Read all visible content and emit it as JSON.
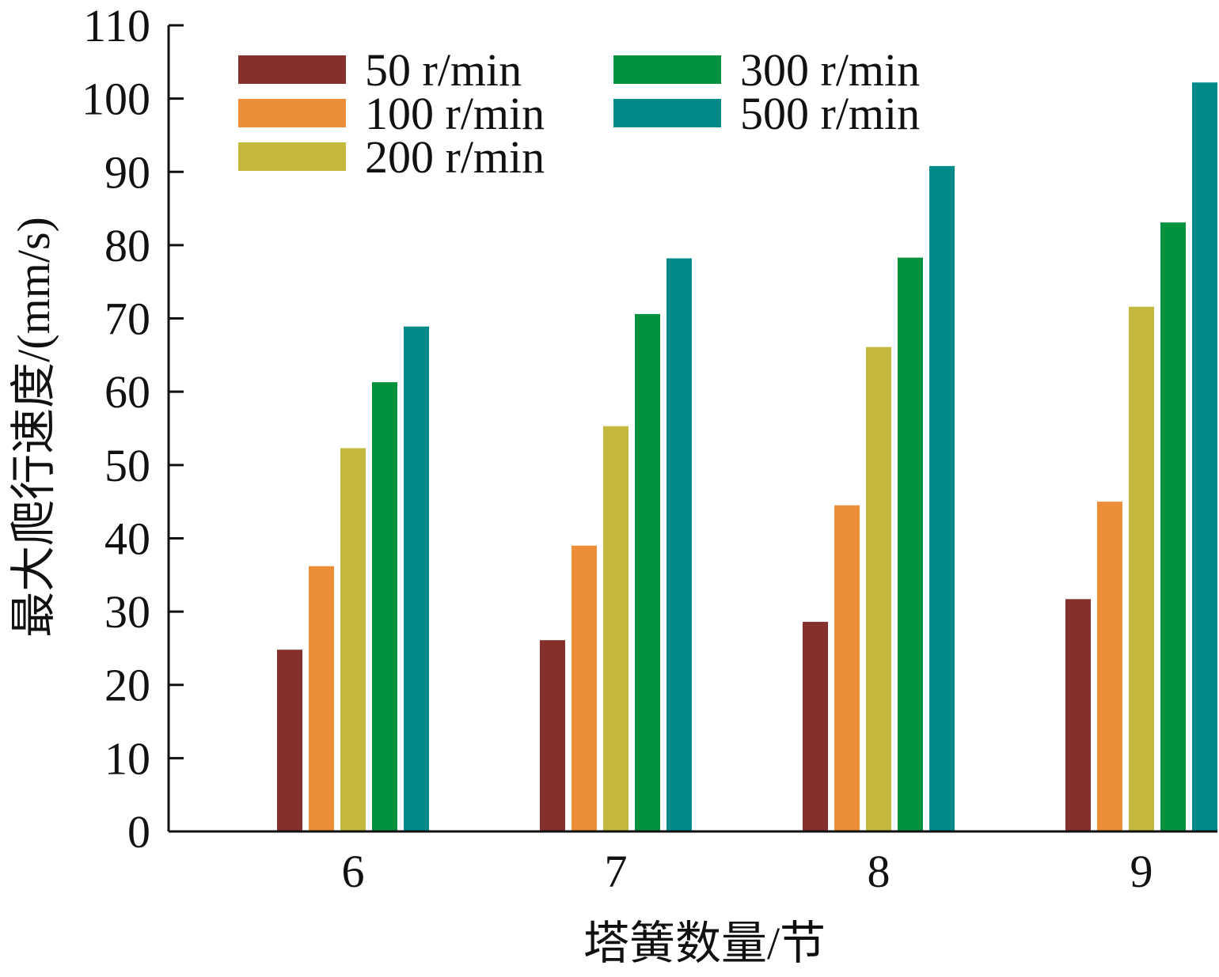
{
  "chart_data": {
    "type": "bar",
    "categories": [
      "6",
      "7",
      "8",
      "9"
    ],
    "series": [
      {
        "name": "50 r/min",
        "color": "#86302B",
        "values": [
          24.8,
          26.1,
          28.6,
          31.7
        ]
      },
      {
        "name": "100 r/min",
        "color": "#EB8E37",
        "values": [
          36.2,
          39.0,
          44.5,
          45.0
        ]
      },
      {
        "name": "200 r/min",
        "color": "#C4B93E",
        "values": [
          52.3,
          55.3,
          66.1,
          71.6
        ]
      },
      {
        "name": "300 r/min",
        "color": "#02923E",
        "values": [
          61.3,
          70.6,
          78.3,
          83.1
        ]
      },
      {
        "name": "500 r/min",
        "color": "#008B8A",
        "values": [
          68.9,
          78.2,
          90.8,
          102.2
        ]
      }
    ],
    "xlabel": "塔簧数量/节",
    "ylabel": "最大爬行速度/(mm/s)",
    "ylim": [
      0,
      110
    ],
    "yticks": [
      0,
      10,
      20,
      30,
      40,
      50,
      60,
      70,
      80,
      90,
      100,
      110
    ],
    "grid": false,
    "legend": "top-left"
  }
}
